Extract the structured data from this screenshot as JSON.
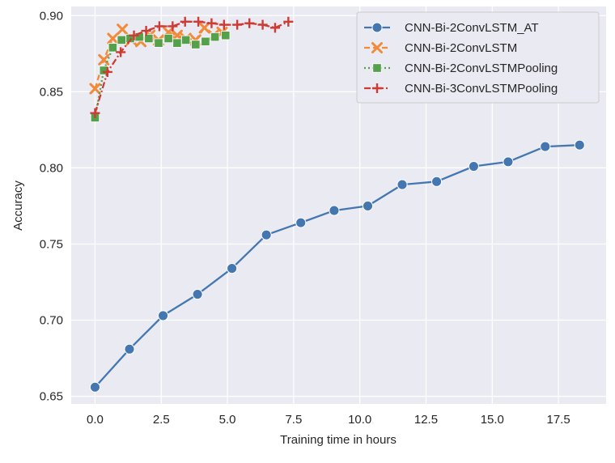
{
  "chart_data": {
    "type": "line",
    "title": "",
    "xlabel": "Training time in hours",
    "ylabel": "Accuracy",
    "xlim": [
      -0.9,
      19.3
    ],
    "ylim": [
      0.645,
      0.906
    ],
    "x_ticks": [
      0.0,
      2.5,
      5.0,
      7.5,
      10.0,
      12.5,
      15.0,
      17.5
    ],
    "x_tick_labels": [
      "0.0",
      "2.5",
      "5.0",
      "7.5",
      "10.0",
      "12.5",
      "15.0",
      "17.5"
    ],
    "y_ticks": [
      0.65,
      0.7,
      0.75,
      0.8,
      0.85,
      0.9
    ],
    "y_tick_labels": [
      "0.65",
      "0.70",
      "0.75",
      "0.80",
      "0.85",
      "0.90"
    ],
    "grid": true,
    "legend_position": "top-right",
    "background": "#eaeaf2",
    "series": [
      {
        "name": "CNN-Bi-2ConvLSTM_AT",
        "color": "#4477b0",
        "line_style": "solid",
        "marker": "circle",
        "x": [
          0.0,
          1.3,
          2.57,
          3.87,
          5.17,
          6.47,
          7.77,
          9.03,
          10.3,
          11.6,
          12.9,
          14.3,
          15.6,
          17.0,
          18.3
        ],
        "y": [
          0.656,
          0.681,
          0.703,
          0.717,
          0.734,
          0.756,
          0.764,
          0.772,
          0.775,
          0.789,
          0.791,
          0.801,
          0.804,
          0.814,
          0.815
        ]
      },
      {
        "name": "CNN-Bi-2ConvLSTM",
        "color": "#f28a3a",
        "line_style": "dashed",
        "marker": "x",
        "x": [
          0.0,
          0.33,
          0.67,
          1.03,
          1.37,
          1.73,
          2.07,
          2.4,
          2.77,
          3.1,
          3.43,
          3.8,
          4.13,
          4.47,
          4.8
        ],
        "y": [
          0.852,
          0.871,
          0.885,
          0.891,
          0.884,
          0.883,
          0.887,
          0.884,
          0.889,
          0.887,
          0.885,
          0.884,
          0.892,
          0.887,
          0.889
        ]
      },
      {
        "name": "CNN-Bi-2ConvLSTMPooling",
        "color": "#55a04a",
        "line_style": "dotted",
        "marker": "square",
        "x": [
          0.0,
          0.33,
          0.67,
          1.0,
          1.33,
          1.67,
          2.03,
          2.4,
          2.77,
          3.1,
          3.43,
          3.8,
          4.17,
          4.53,
          4.93
        ],
        "y": [
          0.833,
          0.864,
          0.879,
          0.884,
          0.885,
          0.886,
          0.885,
          0.882,
          0.885,
          0.882,
          0.884,
          0.881,
          0.883,
          0.886,
          0.887
        ]
      },
      {
        "name": "CNN-Bi-3ConvLSTMPooling",
        "color": "#cd3b34",
        "line_style": "dashdot",
        "marker": "plus",
        "x": [
          0.0,
          0.47,
          0.97,
          1.47,
          1.93,
          2.43,
          2.93,
          3.4,
          3.9,
          4.4,
          4.87,
          5.37,
          5.83,
          6.33,
          6.8,
          7.3
        ],
        "y": [
          0.836,
          0.863,
          0.876,
          0.887,
          0.89,
          0.893,
          0.893,
          0.896,
          0.896,
          0.895,
          0.894,
          0.894,
          0.895,
          0.894,
          0.892,
          0.896
        ]
      }
    ]
  }
}
